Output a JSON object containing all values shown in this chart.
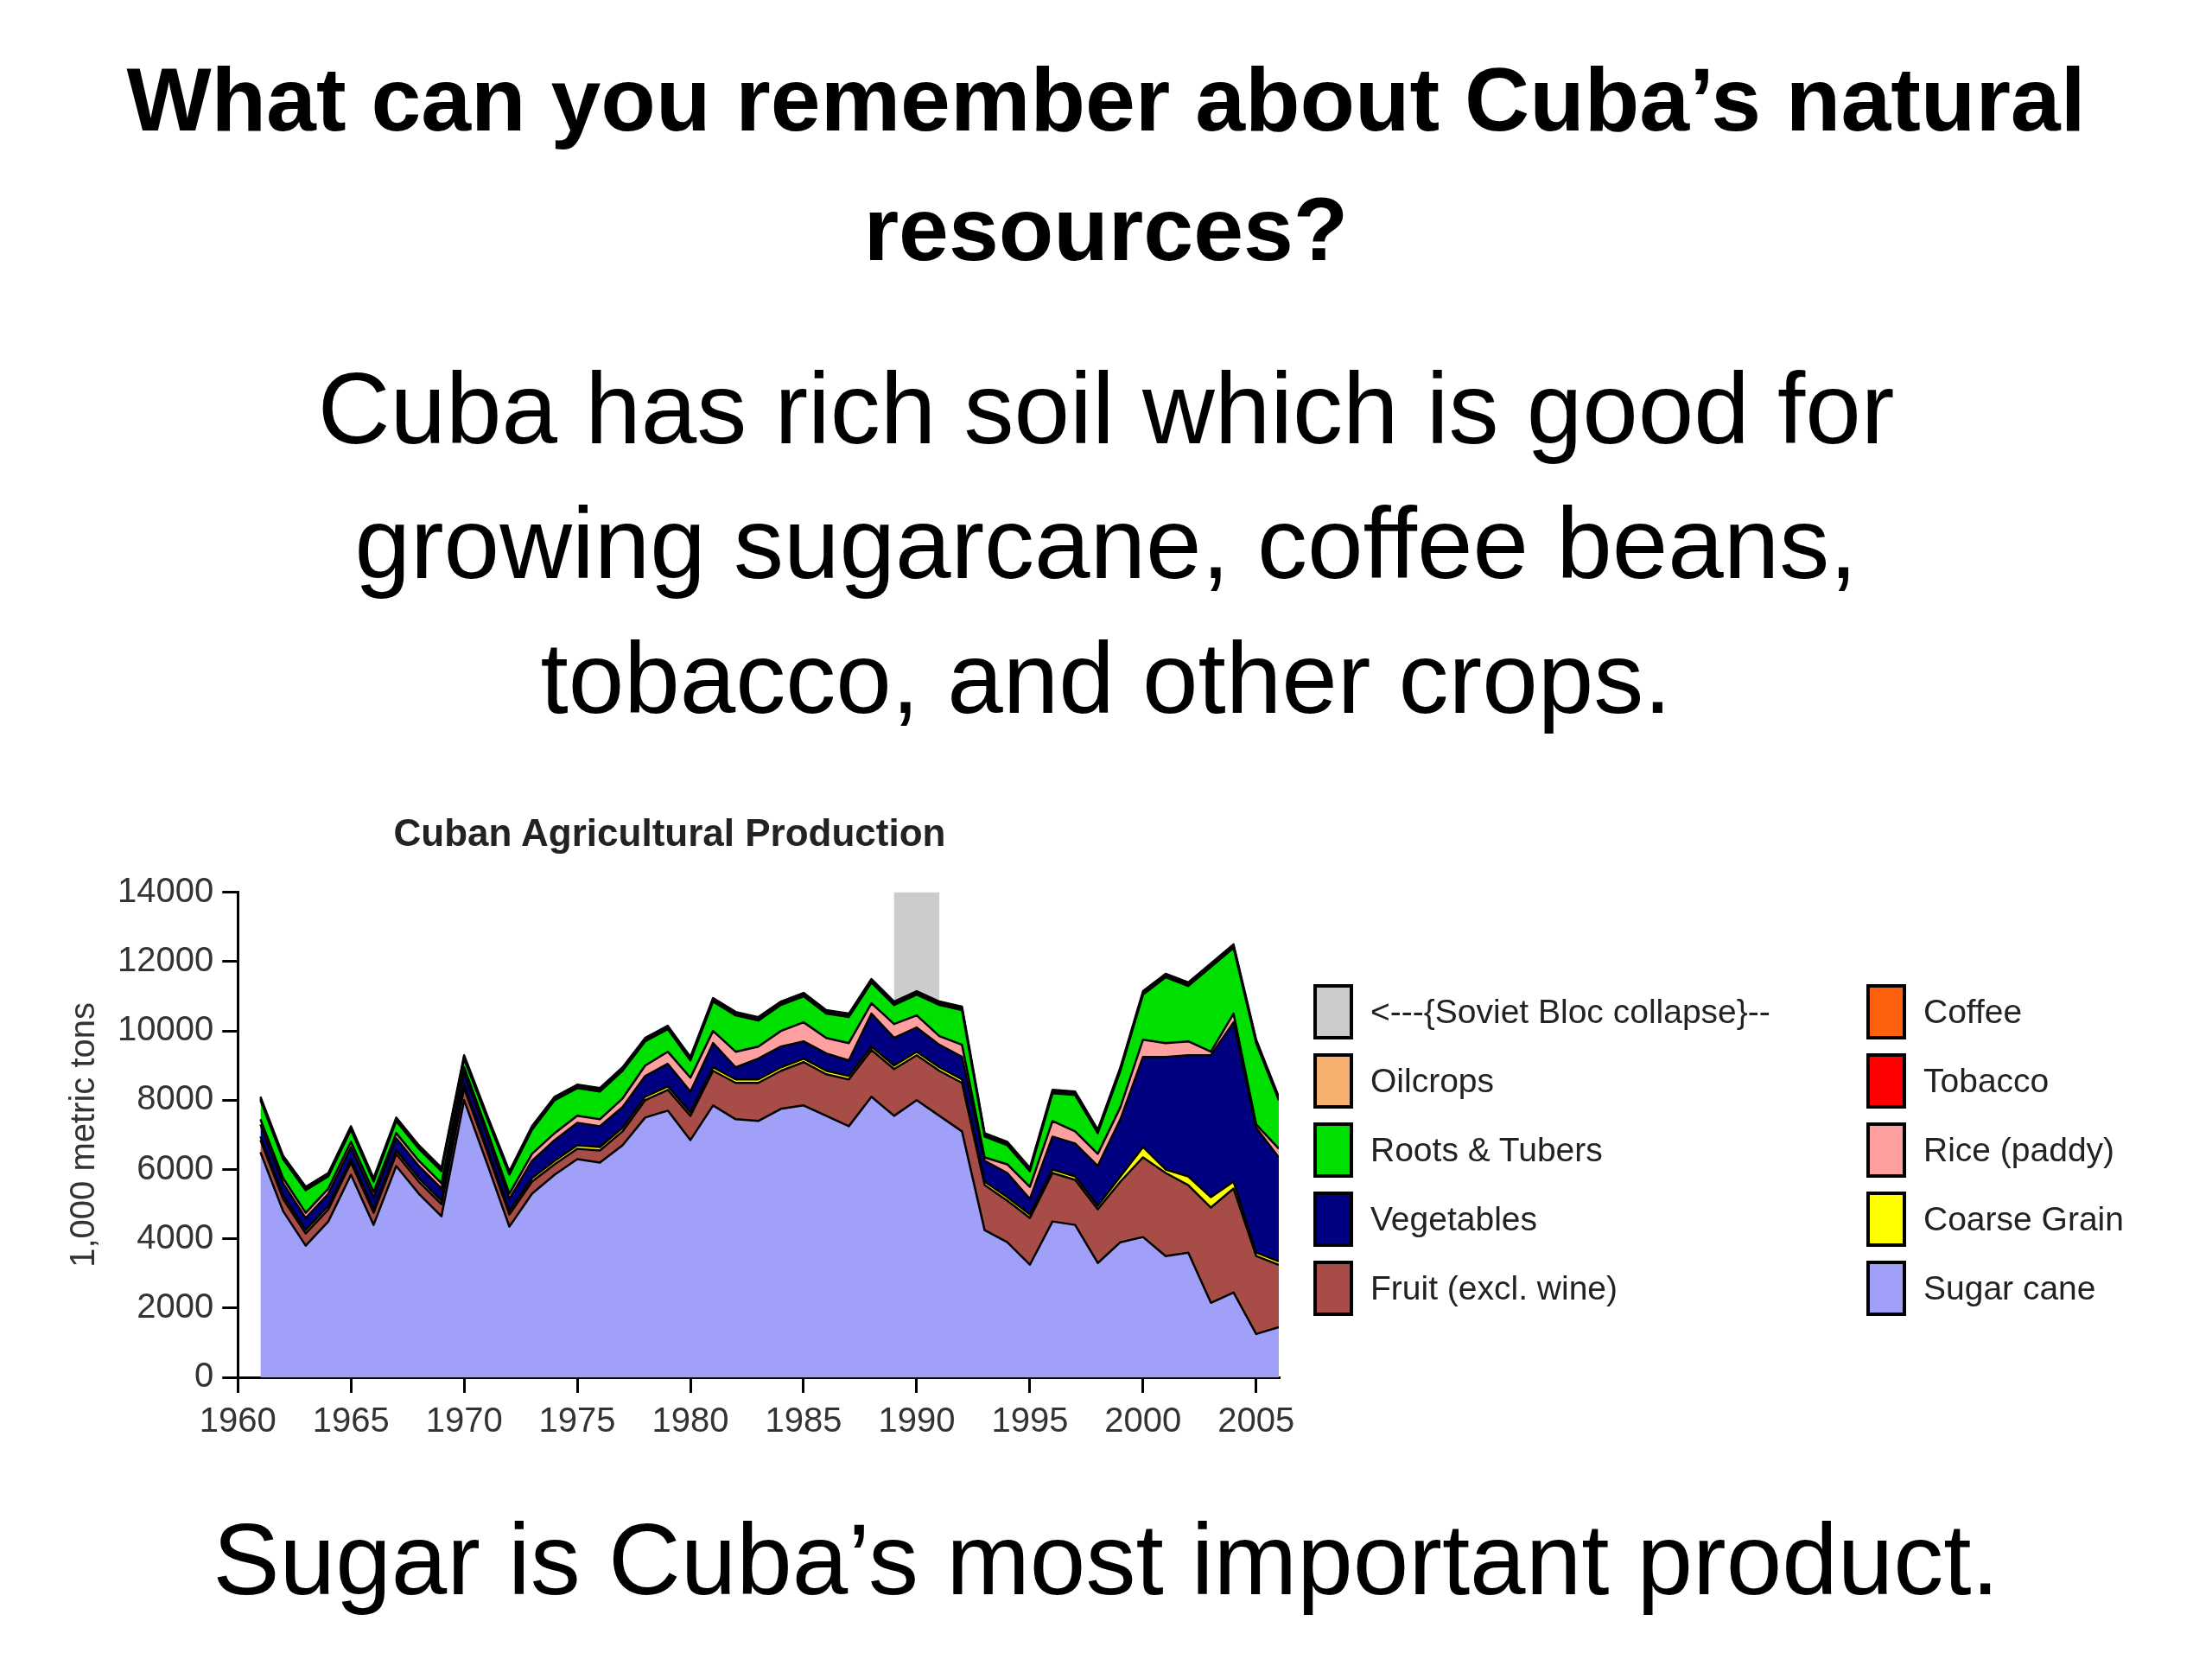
{
  "chart_data": {
    "type": "area",
    "stacked": true,
    "title": "Cuban Agricultural Production",
    "ylabel": "1,000 metric tons",
    "annotations": [
      "What can you remember about Cuba’s natural resources?",
      "Cuba has rich soil which is good for growing sugarcane, coffee beans, tobacco, and other crops.",
      "Sugar is Cuba’s most important product.",
      "<---{Soviet Bloc collapse}--"
    ],
    "x": [
      1961,
      1962,
      1963,
      1964,
      1965,
      1966,
      1967,
      1968,
      1969,
      1970,
      1971,
      1972,
      1973,
      1974,
      1975,
      1976,
      1977,
      1978,
      1979,
      1980,
      1981,
      1982,
      1983,
      1984,
      1985,
      1986,
      1987,
      1988,
      1989,
      1990,
      1991,
      1992,
      1993,
      1994,
      1995,
      1996,
      1997,
      1998,
      1999,
      2000,
      2001,
      2002,
      2003,
      2004,
      2005,
      2006
    ],
    "xlim": [
      1960,
      2006
    ],
    "xticks": [
      1960,
      1965,
      1970,
      1975,
      1980,
      1985,
      1990,
      1995,
      2000,
      2005
    ],
    "ylim": [
      0,
      14000
    ],
    "yticks": [
      0,
      2000,
      4000,
      6000,
      8000,
      10000,
      12000,
      14000
    ],
    "legend": "right",
    "bands": [
      {
        "axis": "x",
        "from": 1989,
        "to": 1991,
        "color": "#cccccc"
      }
    ],
    "series": [
      {
        "name": "Sugar cane",
        "color": "#a0a0f8",
        "values": [
          6500,
          4800,
          3800,
          4500,
          5850,
          4400,
          6100,
          5300,
          4650,
          8000,
          6200,
          4350,
          5300,
          5850,
          6300,
          6200,
          6700,
          7500,
          7700,
          6850,
          7850,
          7450,
          7400,
          7750,
          7850,
          7550,
          7250,
          8100,
          7550,
          8000,
          7550,
          7100,
          4250,
          3900,
          3250,
          4500,
          4400,
          3300,
          3900,
          4050,
          3500,
          3600,
          2150,
          2450,
          1250,
          1450
        ]
      },
      {
        "name": "Fruit (excl. wine)",
        "color": "#a84c48",
        "values": [
          350,
          350,
          350,
          350,
          350,
          350,
          350,
          350,
          350,
          350,
          350,
          350,
          350,
          300,
          300,
          350,
          400,
          500,
          600,
          700,
          1000,
          1050,
          1100,
          1100,
          1250,
          1200,
          1350,
          1350,
          1350,
          1300,
          1300,
          1400,
          1300,
          1200,
          1350,
          1400,
          1300,
          1550,
          1750,
          2300,
          2400,
          1950,
          2750,
          3000,
          2250,
          1800
        ]
      },
      {
        "name": "Coarse Grain",
        "color": "#ffff00",
        "values": [
          100,
          100,
          100,
          100,
          100,
          100,
          100,
          100,
          100,
          100,
          100,
          100,
          100,
          100,
          100,
          100,
          100,
          100,
          100,
          100,
          100,
          100,
          100,
          100,
          100,
          100,
          100,
          100,
          100,
          100,
          100,
          100,
          100,
          100,
          100,
          100,
          100,
          100,
          150,
          300,
          100,
          250,
          300,
          200,
          100,
          100
        ]
      },
      {
        "name": "Vegetables",
        "color": "#000080",
        "values": [
          350,
          350,
          350,
          350,
          350,
          350,
          350,
          350,
          350,
          350,
          350,
          350,
          500,
          600,
          650,
          600,
          600,
          600,
          650,
          600,
          700,
          350,
          600,
          600,
          500,
          500,
          450,
          950,
          800,
          700,
          650,
          650,
          600,
          700,
          450,
          950,
          950,
          1150,
          1650,
          2600,
          3250,
          3500,
          4100,
          4600,
          3600,
          3000
        ]
      },
      {
        "name": "Rice (paddy)",
        "color": "#ffa0a0",
        "values": [
          150,
          150,
          150,
          150,
          150,
          150,
          150,
          150,
          150,
          150,
          150,
          150,
          200,
          200,
          200,
          200,
          250,
          300,
          350,
          400,
          350,
          450,
          350,
          450,
          550,
          450,
          500,
          300,
          400,
          350,
          250,
          350,
          100,
          250,
          350,
          450,
          350,
          350,
          350,
          500,
          400,
          400,
          100,
          250,
          100,
          250
        ]
      },
      {
        "name": "Roots & Tubers",
        "color": "#00e000",
        "values": [
          550,
          550,
          650,
          350,
          350,
          300,
          350,
          350,
          350,
          250,
          350,
          550,
          700,
          950,
          800,
          800,
          800,
          700,
          650,
          500,
          850,
          1050,
          750,
          750,
          750,
          700,
          750,
          600,
          550,
          600,
          900,
          1000,
          600,
          550,
          450,
          800,
          1050,
          600,
          1050,
          1300,
          1900,
          1600,
          2450,
          1900,
          2350,
          1400
        ]
      },
      {
        "name": "Tobacco",
        "color": "#ff0000",
        "values": [
          50,
          50,
          50,
          50,
          50,
          50,
          50,
          50,
          50,
          50,
          50,
          50,
          50,
          50,
          50,
          50,
          50,
          50,
          50,
          50,
          50,
          50,
          50,
          50,
          50,
          50,
          50,
          50,
          50,
          50,
          50,
          50,
          50,
          50,
          50,
          50,
          50,
          50,
          50,
          50,
          50,
          50,
          50,
          50,
          50,
          50
        ]
      },
      {
        "name": "Oilcrops",
        "color": "#f8b070",
        "values": [
          null,
          null,
          null,
          null,
          null,
          null,
          null,
          null,
          null,
          null,
          null,
          null,
          null,
          null,
          null,
          null,
          null,
          null,
          null,
          null,
          null,
          null,
          null,
          null,
          null,
          null,
          null,
          null,
          null,
          null,
          null,
          null,
          null,
          null,
          null,
          null,
          null,
          null,
          null,
          null,
          null,
          null,
          null,
          null,
          null,
          null
        ]
      },
      {
        "name": "Coffee",
        "color": "#ff6010",
        "values": [
          50,
          50,
          50,
          50,
          50,
          50,
          50,
          50,
          50,
          50,
          50,
          50,
          50,
          50,
          50,
          50,
          50,
          50,
          50,
          50,
          50,
          50,
          50,
          50,
          50,
          50,
          50,
          50,
          50,
          50,
          50,
          50,
          50,
          50,
          50,
          50,
          50,
          50,
          50,
          50,
          50,
          50,
          50,
          50,
          50,
          50
        ]
      }
    ]
  }
}
